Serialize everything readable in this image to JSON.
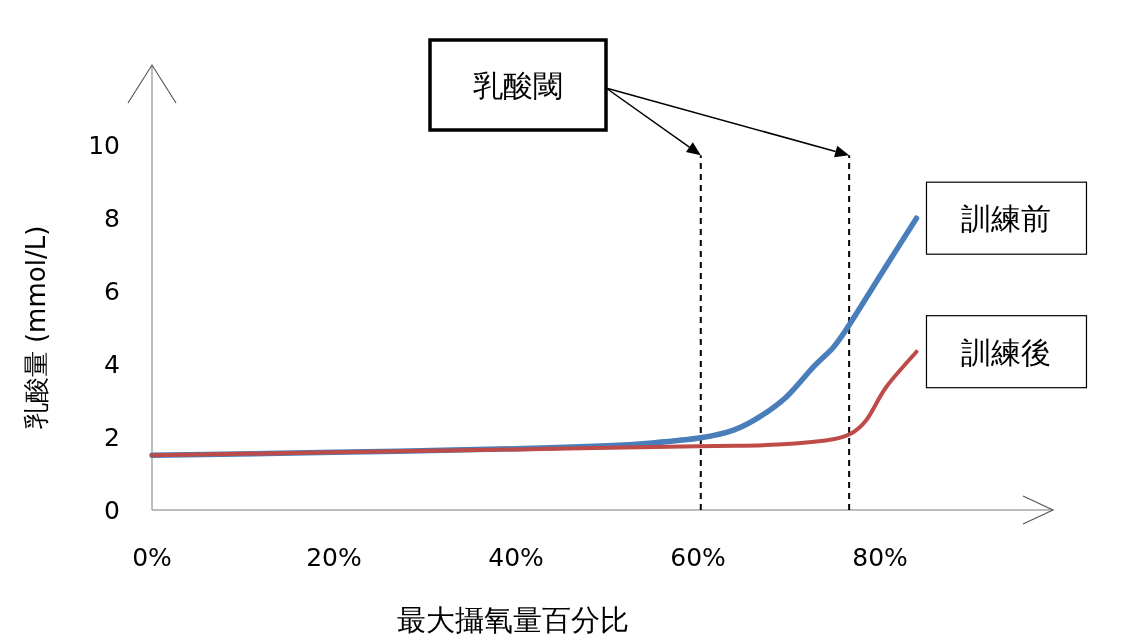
{
  "chart_data": {
    "type": "line",
    "xlabel": "最大攝氧量百分比",
    "ylabel": "乳酸量 (mmol/L)",
    "xlim": [
      0,
      99
    ],
    "ylim": [
      0,
      12.2
    ],
    "xticks": [
      {
        "value": 0,
        "label": "0%"
      },
      {
        "value": 20,
        "label": "20%"
      },
      {
        "value": 40,
        "label": "40%"
      },
      {
        "value": 60,
        "label": "60%"
      },
      {
        "value": 80,
        "label": "80%"
      }
    ],
    "yticks": [
      0,
      2,
      4,
      6,
      8,
      10
    ],
    "series": [
      {
        "name": "訓練前",
        "color": "#4a7ebb",
        "x": [
          0,
          20,
          40,
          50,
          55,
          60.3,
          63.9,
          66.8,
          69.7,
          72.7,
          74.9,
          76.6,
          80.4,
          84
        ],
        "values": [
          1.5,
          1.58,
          1.68,
          1.76,
          1.84,
          1.98,
          2.19,
          2.56,
          3.1,
          3.93,
          4.47,
          5.07,
          6.58,
          8.0
        ]
      },
      {
        "name": "訓練後",
        "color": "#be4b48",
        "x": [
          0,
          20,
          40,
          60,
          67.5,
          73.8,
          76.6,
          78.5,
          80.7,
          84
        ],
        "values": [
          1.5,
          1.58,
          1.66,
          1.75,
          1.78,
          1.9,
          2.07,
          2.47,
          3.38,
          4.34
        ]
      }
    ],
    "ref_lines": [
      {
        "axis": "x",
        "value": 60.3,
        "line_style": "dashed",
        "color": "#000000"
      },
      {
        "axis": "x",
        "value": 76.6,
        "line_style": "dashed",
        "color": "#000000"
      }
    ],
    "annotations": [
      "乳酸閾"
    ]
  }
}
